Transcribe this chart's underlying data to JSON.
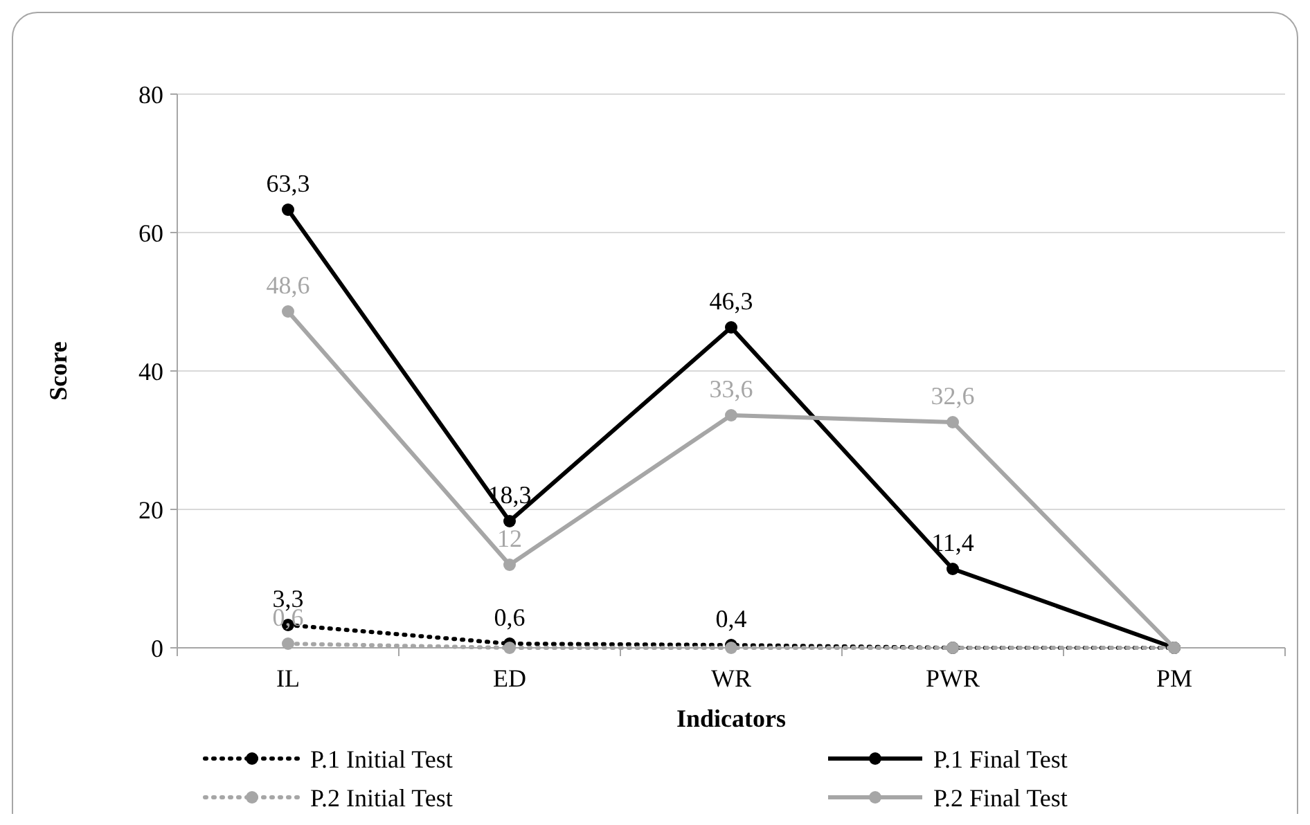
{
  "chart_data": {
    "type": "line",
    "xlabel": "Indicators",
    "ylabel": "Score",
    "categories": [
      "IL",
      "ED",
      "WR",
      "PWR",
      "PM"
    ],
    "ylim": [
      0,
      80
    ],
    "yticks": [
      0,
      20,
      40,
      60,
      80
    ],
    "grid": "y",
    "legend": "bottom",
    "marker": "circle",
    "series": [
      {
        "name": "P.1 Initial Test",
        "color": "#000000",
        "line_style": "dotted",
        "values": [
          3.3,
          0.6,
          0.4,
          0,
          0
        ],
        "value_labels": [
          "3,3",
          "0,6",
          "0,4",
          null,
          null
        ]
      },
      {
        "name": "P.1 Final Test",
        "color": "#000000",
        "line_style": "solid",
        "values": [
          63.3,
          18.3,
          46.3,
          11.4,
          0
        ],
        "value_labels": [
          "63,3",
          "18,3",
          "46,3",
          "11,4",
          null
        ]
      },
      {
        "name": "P.2 Initial Test",
        "color": "#a6a6a6",
        "line_style": "dotted",
        "values": [
          0.6,
          0,
          0,
          0,
          0
        ],
        "value_labels": [
          "0,6",
          null,
          null,
          null,
          null
        ]
      },
      {
        "name": "P.2 Final Test",
        "color": "#a6a6a6",
        "line_style": "solid",
        "values": [
          48.6,
          12,
          33.6,
          32.6,
          0
        ],
        "value_labels": [
          "48,6",
          "12",
          "33,6",
          "32,6",
          null
        ]
      }
    ]
  }
}
